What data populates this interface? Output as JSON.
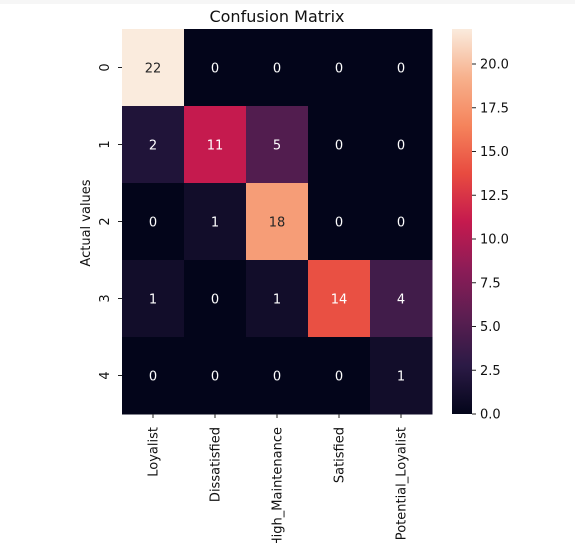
{
  "chart_data": {
    "type": "heatmap",
    "title": "Confusion Matrix",
    "ylabel": "Actual values",
    "xlabel": "",
    "x_ticklabels": [
      "Loyalist",
      "Dissatisfied",
      "High_Maintenance",
      "Satisfied",
      "Potential_Loyalist"
    ],
    "y_ticklabels": [
      "0",
      "1",
      "2",
      "3",
      "4"
    ],
    "matrix": [
      [
        22,
        0,
        0,
        0,
        0
      ],
      [
        2,
        11,
        5,
        0,
        0
      ],
      [
        0,
        1,
        18,
        0,
        0
      ],
      [
        1,
        0,
        1,
        14,
        4
      ],
      [
        0,
        0,
        0,
        0,
        1
      ]
    ],
    "colorbar": {
      "min": 0.0,
      "max": 22.0,
      "ticks": [
        "0.0",
        "2.5",
        "5.0",
        "7.5",
        "10.0",
        "12.5",
        "15.0",
        "17.5",
        "20.0"
      ],
      "colormap": [
        "#03051a",
        "#2b1a45",
        "#5b1e51",
        "#8c1c57",
        "#c51a4e",
        "#e84b40",
        "#f5845c",
        "#f7b18d",
        "#faebdd"
      ]
    }
  }
}
